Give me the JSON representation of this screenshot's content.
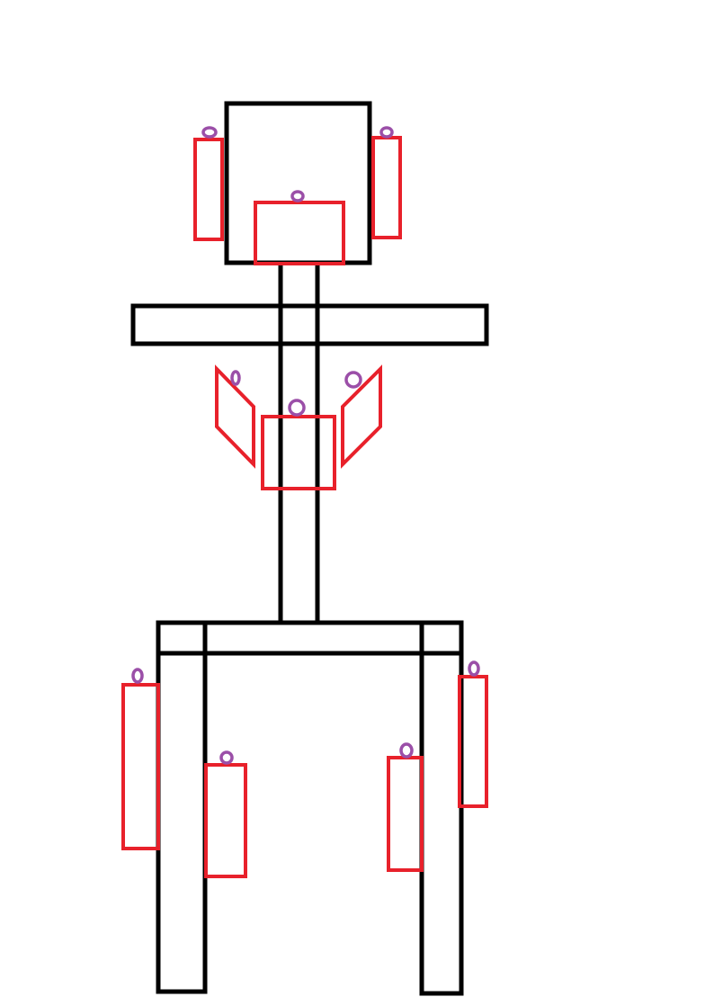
{
  "colors": {
    "background": "#ffffff",
    "frame": "#000000",
    "part": "#e8212b",
    "ring": "#9b4fa8"
  },
  "icons": {
    "frame": "structural-frame-outline",
    "part": "red-rectangular-part-outline",
    "ring": "purple-hanging-ring"
  }
}
